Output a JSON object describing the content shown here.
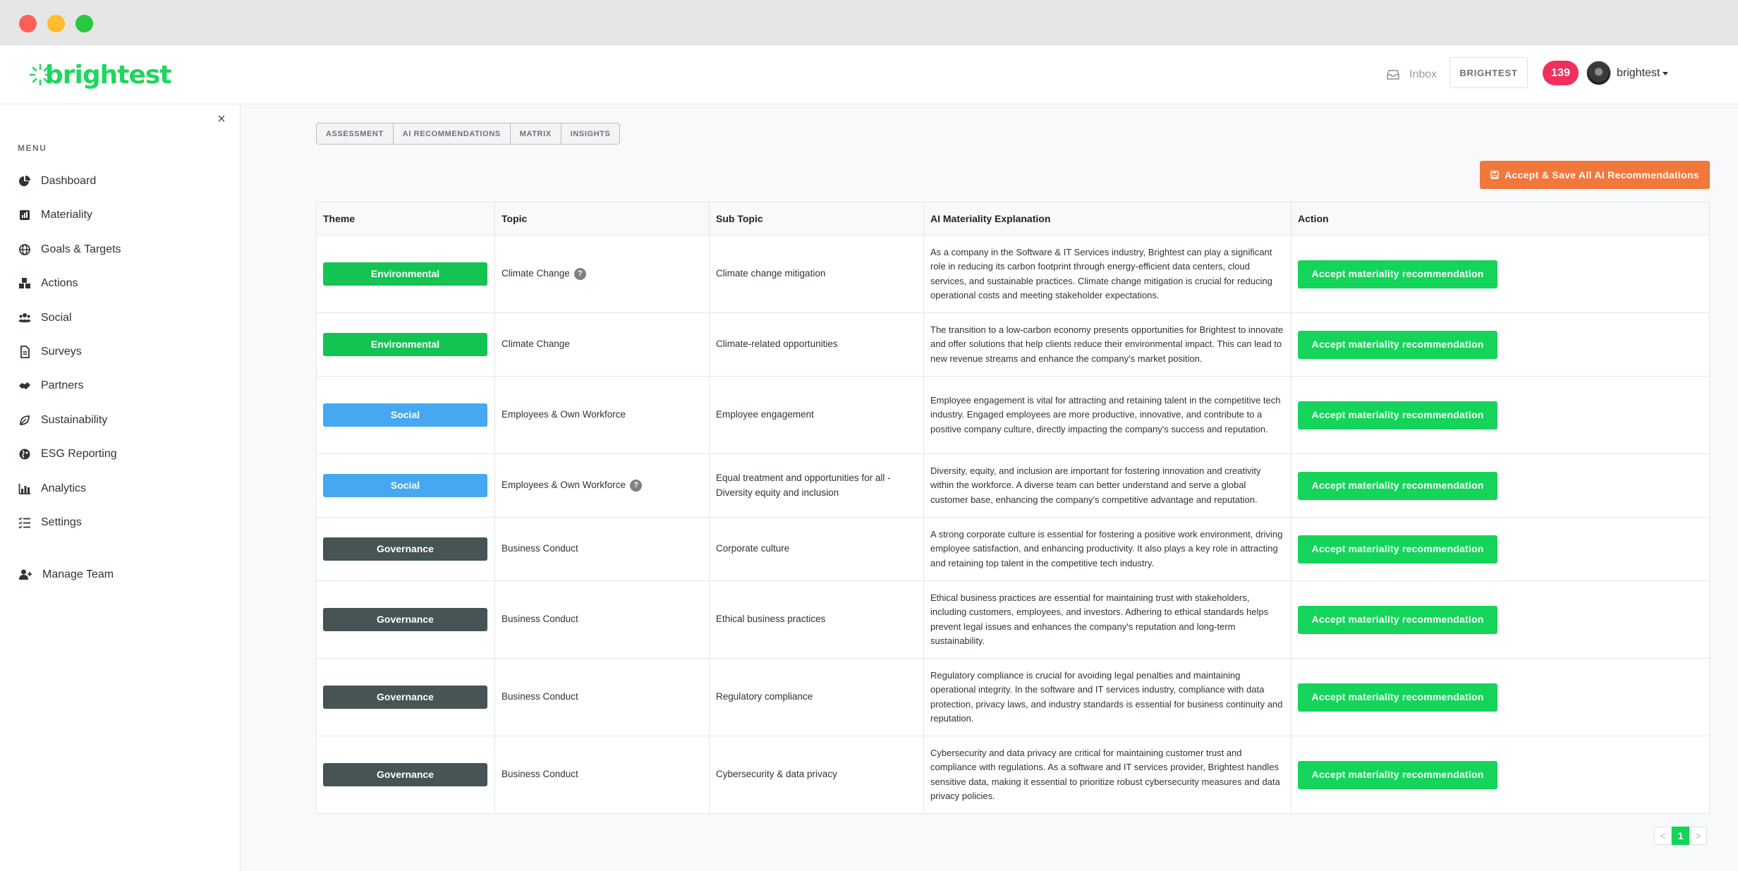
{
  "header": {
    "logo_text": "brightest",
    "inbox_label": "Inbox",
    "org_button": "BRIGHTEST",
    "notification_count": "139",
    "username": "brightest",
    "brand_color": "#1fd65f"
  },
  "sidebar": {
    "close_symbol": "×",
    "menu_label": "MENU",
    "items": [
      {
        "label": "Dashboard",
        "icon": "pie-chart-icon"
      },
      {
        "label": "Materiality",
        "icon": "chart-square-icon"
      },
      {
        "label": "Goals & Targets",
        "icon": "globe-icon"
      },
      {
        "label": "Actions",
        "icon": "cubes-icon"
      },
      {
        "label": "Social",
        "icon": "users-icon"
      },
      {
        "label": "Surveys",
        "icon": "document-icon"
      },
      {
        "label": "Partners",
        "icon": "handshake-icon"
      },
      {
        "label": "Sustainability",
        "icon": "leaf-icon"
      },
      {
        "label": "ESG Reporting",
        "icon": "globe-hemisphere-icon"
      },
      {
        "label": "Analytics",
        "icon": "bar-chart-icon"
      },
      {
        "label": "Settings",
        "icon": "list-check-icon"
      }
    ],
    "manage_team": {
      "label": "Manage Team",
      "icon": "user-plus-icon"
    }
  },
  "tabs": [
    "ASSESSMENT",
    "AI RECOMMENDATIONS",
    "MATRIX",
    "INSIGHTS"
  ],
  "accept_all_label": "Accept & Save All AI Recommendations",
  "table": {
    "headers": [
      "Theme",
      "Topic",
      "Sub Topic",
      "AI Materiality Explanation",
      "Action"
    ],
    "action_label": "Accept materiality recommendation",
    "theme_colors": {
      "Environmental": "#14c452",
      "Social": "#45a8f0",
      "Governance": "#465456"
    },
    "rows": [
      {
        "theme": "Environmental",
        "topic": "Climate Change",
        "help": true,
        "sub_topic": "Climate change mitigation",
        "explanation": "As a company in the Software & IT Services industry, Brightest can play a significant role in reducing its carbon footprint through energy-efficient data centers, cloud services, and sustainable practices. Climate change mitigation is crucial for reducing operational costs and meeting stakeholder expectations."
      },
      {
        "theme": "Environmental",
        "topic": "Climate Change",
        "help": false,
        "sub_topic": "Climate-related opportunities",
        "explanation": "The transition to a low-carbon economy presents opportunities for Brightest to innovate and offer solutions that help clients reduce their environmental impact. This can lead to new revenue streams and enhance the company's market position."
      },
      {
        "theme": "Social",
        "topic": "Employees & Own Workforce",
        "help": false,
        "sub_topic": "Employee engagement",
        "explanation": "Employee engagement is vital for attracting and retaining talent in the competitive tech industry. Engaged employees are more productive, innovative, and contribute to a positive company culture, directly impacting the company's success and reputation."
      },
      {
        "theme": "Social",
        "topic": "Employees & Own Workforce",
        "help": true,
        "sub_topic": "Equal treatment and opportunities for all - Diversity equity and inclusion",
        "explanation": "Diversity, equity, and inclusion are important for fostering innovation and creativity within the workforce. A diverse team can better understand and serve a global customer base, enhancing the company's competitive advantage and reputation."
      },
      {
        "theme": "Governance",
        "topic": "Business Conduct",
        "help": false,
        "sub_topic": "Corporate culture",
        "explanation": "A strong corporate culture is essential for fostering a positive work environment, driving employee satisfaction, and enhancing productivity. It also plays a key role in attracting and retaining top talent in the competitive tech industry."
      },
      {
        "theme": "Governance",
        "topic": "Business Conduct",
        "help": false,
        "sub_topic": "Ethical business practices",
        "explanation": "Ethical business practices are essential for maintaining trust with stakeholders, including customers, employees, and investors. Adhering to ethical standards helps prevent legal issues and enhances the company's reputation and long-term sustainability."
      },
      {
        "theme": "Governance",
        "topic": "Business Conduct",
        "help": false,
        "sub_topic": "Regulatory compliance",
        "explanation": "Regulatory compliance is crucial for avoiding legal penalties and maintaining operational integrity. In the software and IT services industry, compliance with data protection, privacy laws, and industry standards is essential for business continuity and reputation."
      },
      {
        "theme": "Governance",
        "topic": "Business Conduct",
        "help": false,
        "sub_topic": "Cybersecurity & data privacy",
        "explanation": "Cybersecurity and data privacy are critical for maintaining customer trust and compliance with regulations. As a software and IT services provider, Brightest handles sensitive data, making it essential to prioritize robust cybersecurity measures and data privacy policies."
      }
    ]
  },
  "pagination": {
    "prev": "<",
    "current": "1",
    "next": ">"
  }
}
